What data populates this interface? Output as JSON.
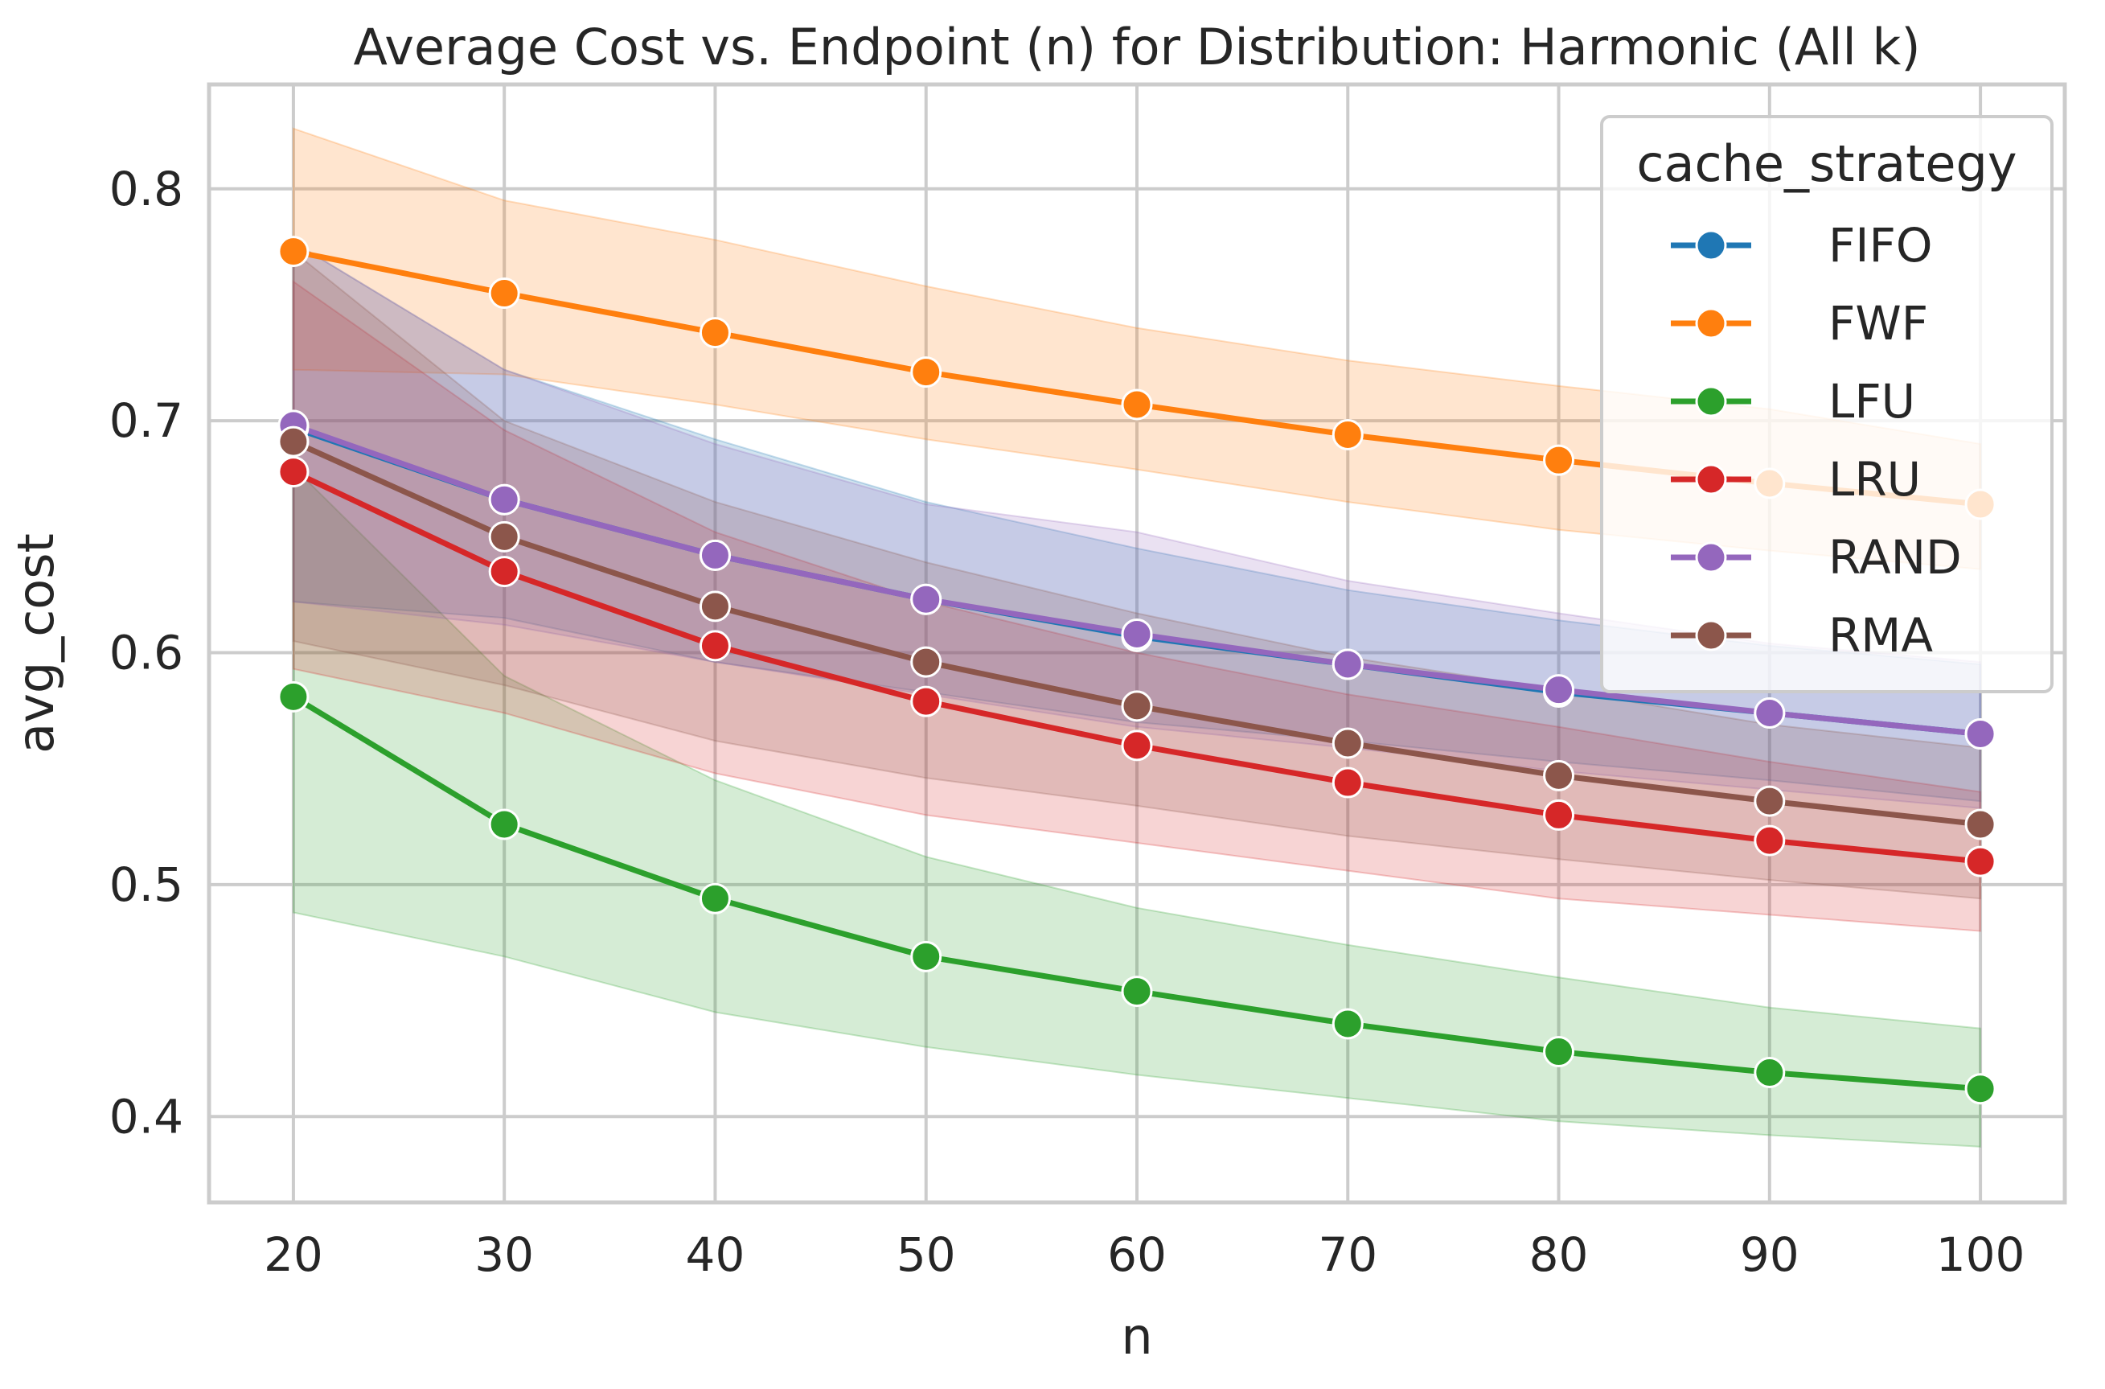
{
  "chart_data": {
    "type": "line",
    "title": "Average Cost vs. Endpoint (n) for Distribution: Harmonic (All k)",
    "xlabel": "n",
    "ylabel": "avg_cost",
    "x": [
      20,
      30,
      40,
      50,
      60,
      70,
      80,
      90,
      100
    ],
    "xticks": [
      "20",
      "30",
      "40",
      "50",
      "60",
      "70",
      "80",
      "90",
      "100"
    ],
    "yticks": [
      "0.4",
      "0.5",
      "0.6",
      "0.7",
      "0.8"
    ],
    "xlim": [
      16,
      104
    ],
    "ylim": [
      0.363,
      0.845
    ],
    "grid": true,
    "legend": {
      "title": "cache_strategy",
      "placement": "top-right"
    },
    "series": [
      {
        "name": "FIFO",
        "color": "#1f77b4",
        "values": [
          0.697,
          0.666,
          0.642,
          0.623,
          0.607,
          0.595,
          0.583,
          0.574,
          0.565
        ],
        "ci_low": [
          0.622,
          0.615,
          0.596,
          0.583,
          0.57,
          0.562,
          0.553,
          0.545,
          0.536
        ],
        "ci_high": [
          0.777,
          0.722,
          0.692,
          0.665,
          0.645,
          0.627,
          0.614,
          0.603,
          0.595
        ]
      },
      {
        "name": "FWF",
        "color": "#ff7f0e",
        "values": [
          0.773,
          0.755,
          0.738,
          0.721,
          0.707,
          0.694,
          0.683,
          0.673,
          0.664
        ],
        "ci_low": [
          0.722,
          0.72,
          0.707,
          0.692,
          0.679,
          0.665,
          0.653,
          0.644,
          0.636
        ],
        "ci_high": [
          0.826,
          0.795,
          0.778,
          0.758,
          0.74,
          0.726,
          0.715,
          0.705,
          0.69
        ]
      },
      {
        "name": "LFU",
        "color": "#2ca02c",
        "values": [
          0.581,
          0.526,
          0.494,
          0.469,
          0.454,
          0.44,
          0.428,
          0.419,
          0.412
        ],
        "ci_low": [
          0.488,
          0.469,
          0.445,
          0.43,
          0.418,
          0.408,
          0.398,
          0.392,
          0.387
        ],
        "ci_high": [
          0.68,
          0.59,
          0.545,
          0.512,
          0.49,
          0.474,
          0.46,
          0.447,
          0.438
        ]
      },
      {
        "name": "LRU",
        "color": "#d62728",
        "values": [
          0.678,
          0.635,
          0.603,
          0.579,
          0.56,
          0.544,
          0.53,
          0.519,
          0.51
        ],
        "ci_low": [
          0.593,
          0.574,
          0.548,
          0.53,
          0.518,
          0.506,
          0.494,
          0.487,
          0.48
        ],
        "ci_high": [
          0.76,
          0.696,
          0.652,
          0.622,
          0.6,
          0.582,
          0.568,
          0.553,
          0.54
        ]
      },
      {
        "name": "RAND",
        "color": "#9467bd",
        "values": [
          0.698,
          0.666,
          0.642,
          0.623,
          0.608,
          0.595,
          0.584,
          0.574,
          0.565
        ],
        "ci_low": [
          0.622,
          0.612,
          0.596,
          0.582,
          0.568,
          0.559,
          0.549,
          0.541,
          0.533
        ],
        "ci_high": [
          0.777,
          0.722,
          0.69,
          0.664,
          0.652,
          0.631,
          0.617,
          0.604,
          0.596
        ]
      },
      {
        "name": "RMA",
        "color": "#8c564b",
        "values": [
          0.691,
          0.65,
          0.62,
          0.596,
          0.577,
          0.561,
          0.547,
          0.536,
          0.526
        ],
        "ci_low": [
          0.605,
          0.586,
          0.562,
          0.546,
          0.534,
          0.521,
          0.511,
          0.502,
          0.494
        ],
        "ci_high": [
          0.773,
          0.7,
          0.665,
          0.639,
          0.617,
          0.598,
          0.584,
          0.569,
          0.559
        ]
      }
    ]
  }
}
